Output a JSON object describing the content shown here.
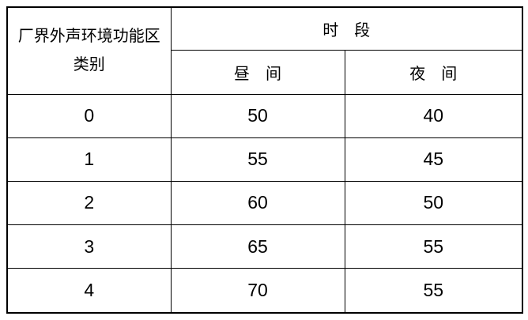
{
  "table": {
    "category_header": {
      "line1": "厂界外声环境功能区",
      "line2": "类别"
    },
    "period_header": "时　段",
    "day_header": "昼　间",
    "night_header": "夜　间",
    "rows": [
      {
        "category": "0",
        "day": "50",
        "night": "40"
      },
      {
        "category": "1",
        "day": "55",
        "night": "45"
      },
      {
        "category": "2",
        "day": "60",
        "night": "50"
      },
      {
        "category": "3",
        "day": "65",
        "night": "55"
      },
      {
        "category": "4",
        "day": "70",
        "night": "55"
      }
    ]
  },
  "colors": {
    "border": "#000000",
    "text": "#000000",
    "background": "#ffffff"
  }
}
